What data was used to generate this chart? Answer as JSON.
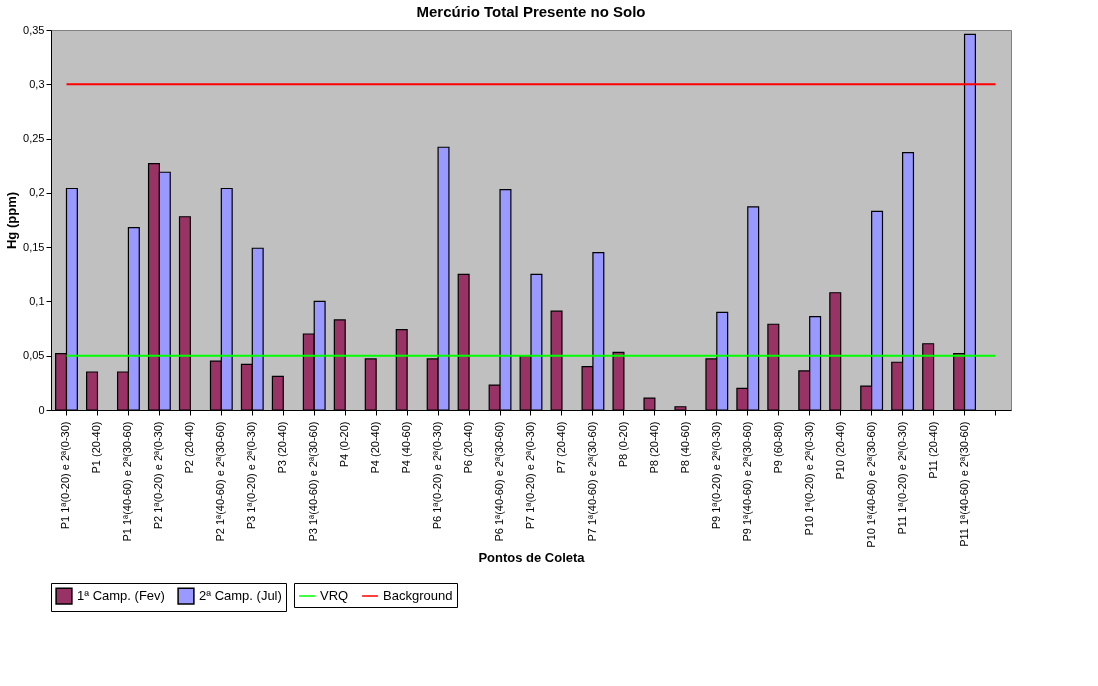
{
  "chart_data": {
    "type": "bar",
    "title": "Mercúrio Total Presente no Solo",
    "xlabel": "Pontos de Coleta",
    "ylabel": "Hg (ppm)",
    "categories": [
      "P1 1ª(0-20) e 2ª(0-30)",
      "P1 (20-40)",
      "P1 1ª(40-60) e 2ª(30-60)",
      "P2 1ª(0-20) e 2ª(0-30)",
      "P2 (20-40)",
      "P2 1ª(40-60) e 2ª(30-60)",
      "P3 1ª(0-20) e 2ª(0-30)",
      "P3 (20-40)",
      "P3 1ª(40-60) e 2ª(30-60)",
      "P4 (0-20)",
      "P4 (20-40)",
      "P4 (40-60)",
      "P6 1ª(0-20) e 2ª(0-30)",
      "P6 (20-40)",
      "P6 1ª(40-60) e 2ª(30-60)",
      "P7 1ª(0-20) e 2ª(0-30)",
      "P7 (20-40)",
      "P7 1ª(40-60) e 2ª(30-60)",
      "P8 (0-20)",
      "P8 (20-40)",
      "P8 (40-60)",
      "P9 1ª(0-20) e 2ª(0-30)",
      "P9 1ª(40-60) e 2ª(30-60)",
      "P9 (60-80)",
      "P10 1ª(0-20) e 2ª(0-30)",
      "P10 (20-40)",
      "P10 1ª(40-60) e 2ª(30-60)",
      "P11 1ª(0-20) e 2ª(0-30)",
      "P11 (20-40)",
      "P11 1ª(40-60) e 2ª(30-60)",
      null
    ],
    "series": [
      {
        "name": "1ª Camp. (Fev)",
        "color": "#993366",
        "values": [
          0.052,
          0.035,
          0.035,
          0.227,
          0.178,
          0.045,
          0.042,
          0.031,
          0.07,
          0.083,
          0.047,
          0.074,
          0.047,
          0.125,
          0.023,
          0.05,
          0.091,
          0.04,
          0.053,
          0.011,
          0.003,
          0.047,
          0.02,
          0.079,
          0.036,
          0.108,
          0.022,
          0.044,
          0.061,
          0.052,
          null
        ]
      },
      {
        "name": "2ª Camp. (Jul)",
        "color": "#9999ff",
        "values": [
          0.204,
          null,
          0.168,
          0.219,
          null,
          0.204,
          0.149,
          null,
          0.1,
          null,
          null,
          null,
          0.242,
          null,
          0.203,
          0.125,
          null,
          0.145,
          null,
          null,
          null,
          0.09,
          0.187,
          null,
          0.086,
          null,
          0.183,
          0.237,
          null,
          0.346,
          null
        ]
      },
      {
        "name": "VRQ",
        "type": "line",
        "color": "#00ff00",
        "values": [
          0.05,
          0.05,
          0.05,
          0.05,
          0.05,
          0.05,
          0.05,
          0.05,
          0.05,
          0.05,
          0.05,
          0.05,
          0.05,
          0.05,
          0.05,
          0.05,
          0.05,
          0.05,
          0.05,
          0.05,
          0.05,
          0.05,
          0.05,
          0.05,
          0.05,
          0.05,
          0.05,
          0.05,
          0.05,
          0.05,
          0.05
        ]
      },
      {
        "name": "Background",
        "type": "line",
        "color": "#ff0000",
        "values": [
          0.3,
          0.3,
          0.3,
          0.3,
          0.3,
          0.3,
          0.3,
          0.3,
          0.3,
          0.3,
          0.3,
          0.3,
          0.3,
          0.3,
          0.3,
          0.3,
          0.3,
          0.3,
          0.3,
          0.3,
          0.3,
          0.3,
          0.3,
          0.3,
          0.3,
          0.3,
          0.3,
          0.3,
          0.3,
          0.3,
          0.3
        ]
      }
    ],
    "ylim": [
      0,
      0.35
    ],
    "yticks": [
      0,
      {
        "value": 0.05,
        "label": "0,05"
      },
      {
        "value": 0.1,
        "label": "0,1"
      },
      {
        "value": 0.15,
        "label": "0,15"
      },
      {
        "value": 0.2,
        "label": "0,2"
      },
      {
        "value": 0.25,
        "label": "0,25"
      },
      {
        "value": 0.3,
        "label": "0,3"
      },
      {
        "value": 0.35,
        "label": "0,35"
      }
    ],
    "grid": false,
    "legend": "bottom",
    "marker": "none",
    "line_style": "solid"
  }
}
